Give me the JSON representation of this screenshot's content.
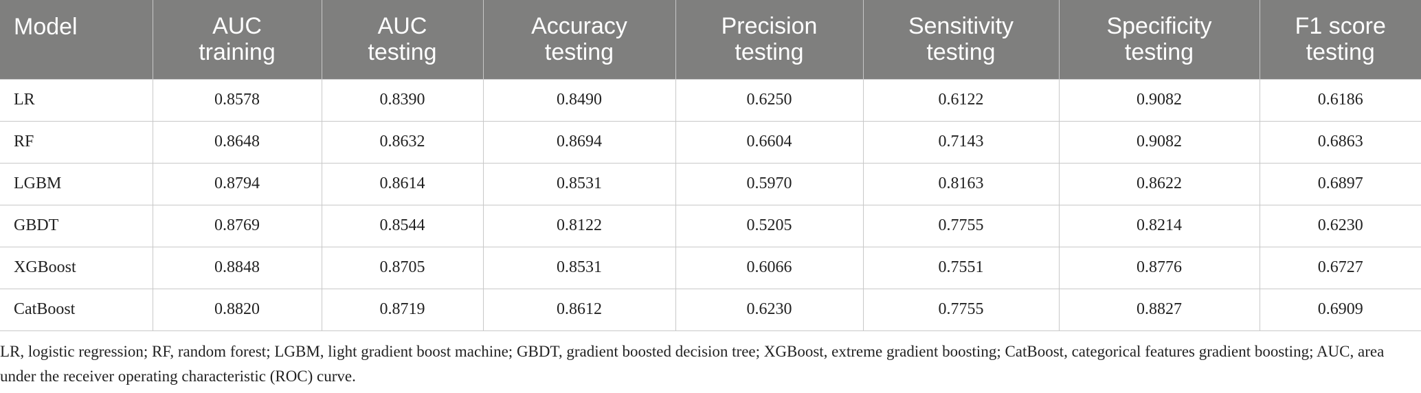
{
  "table": {
    "header": [
      "Model",
      "AUC\ntraining",
      "AUC\ntesting",
      "Accuracy\ntesting",
      "Precision\ntesting",
      "Sensitivity\ntesting",
      "Specificity\ntesting",
      "F1 score\ntesting"
    ],
    "rows": [
      [
        "LR",
        "0.8578",
        "0.8390",
        "0.8490",
        "0.6250",
        "0.6122",
        "0.9082",
        "0.6186"
      ],
      [
        "RF",
        "0.8648",
        "0.8632",
        "0.8694",
        "0.6604",
        "0.7143",
        "0.9082",
        "0.6863"
      ],
      [
        "LGBM",
        "0.8794",
        "0.8614",
        "0.8531",
        "0.5970",
        "0.8163",
        "0.8622",
        "0.6897"
      ],
      [
        "GBDT",
        "0.8769",
        "0.8544",
        "0.8122",
        "0.5205",
        "0.7755",
        "0.8214",
        "0.6230"
      ],
      [
        "XGBoost",
        "0.8848",
        "0.8705",
        "0.8531",
        "0.6066",
        "0.7551",
        "0.8776",
        "0.6727"
      ],
      [
        "CatBoost",
        "0.8820",
        "0.8719",
        "0.8612",
        "0.6230",
        "0.7755",
        "0.8827",
        "0.6909"
      ]
    ]
  },
  "footnote": "LR, logistic regression; RF, random forest; LGBM, light gradient boost machine; GBDT, gradient boosted decision tree; XGBoost, extreme gradient boosting; CatBoost, categorical features gradient boosting; AUC, area under the receiver operating characteristic (ROC) curve."
}
